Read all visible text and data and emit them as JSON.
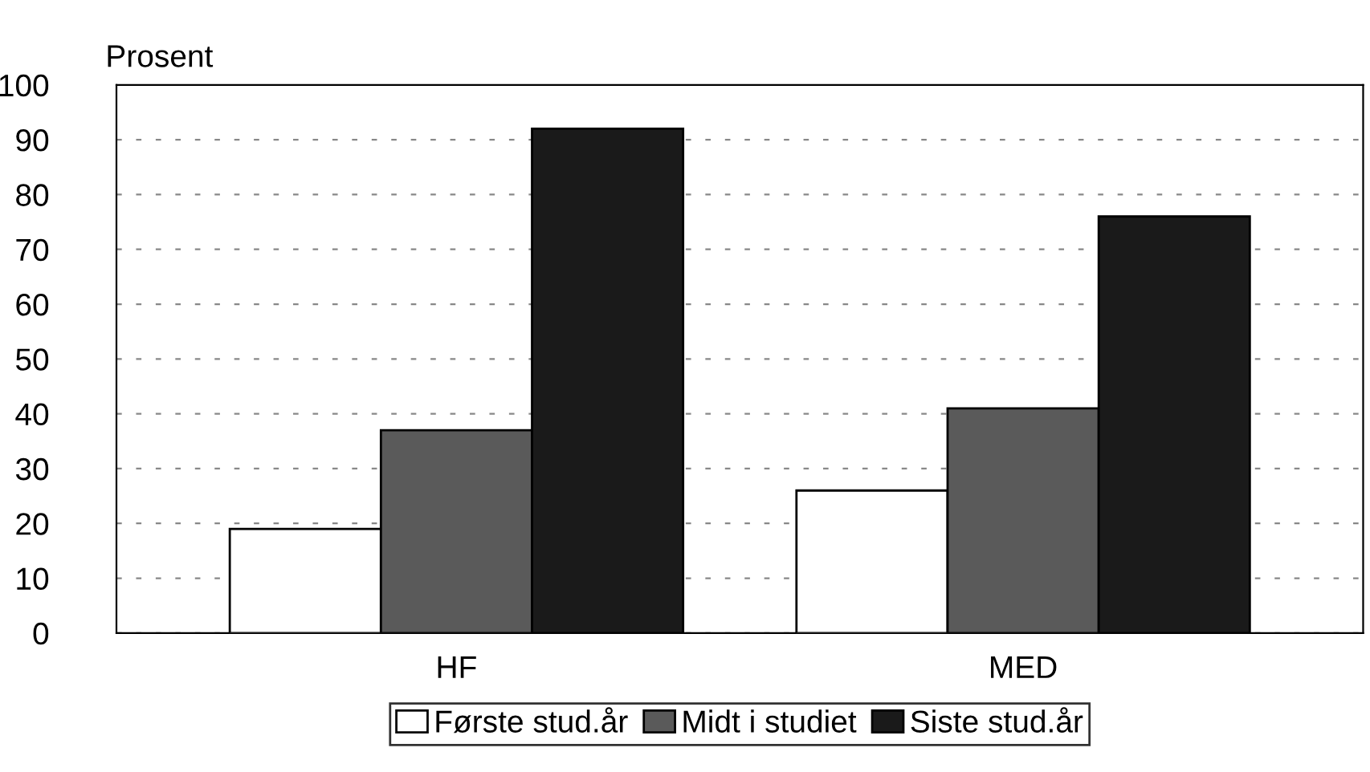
{
  "chart_data": {
    "type": "bar",
    "ylabel": "Prosent",
    "categories": [
      "HF",
      "MED"
    ],
    "series": [
      {
        "name": "Første stud.år",
        "color": "#ffffff",
        "values": [
          19,
          26
        ]
      },
      {
        "name": "Midt i studiet",
        "color": "#5a5a5a",
        "values": [
          37,
          41
        ]
      },
      {
        "name": "Siste stud.år",
        "color": "#1a1a1a",
        "values": [
          92,
          76
        ]
      }
    ],
    "ylim": [
      0,
      100
    ],
    "yticks": [
      0,
      10,
      20,
      30,
      40,
      50,
      60,
      70,
      80,
      90,
      100
    ],
    "grid": "y",
    "legend": "bottom"
  }
}
